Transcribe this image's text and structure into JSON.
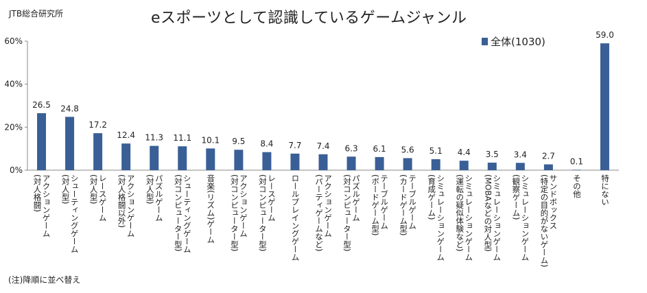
{
  "source": "JTB総合研究所",
  "title": "eスポーツとして認識しているゲームジャンル",
  "note": "(注)降順に並べ替え",
  "colors": {
    "bar": "#3a5f96",
    "axis": "#888888"
  },
  "chart_data": {
    "type": "bar",
    "title": "eスポーツとして認識しているゲームジャンル",
    "xlabel": "",
    "ylabel": "",
    "ylim": [
      0,
      60
    ],
    "yticks": [
      "0%",
      "20%",
      "40%",
      "60%"
    ],
    "ytick_values": [
      0,
      20,
      40,
      60
    ],
    "legend": "top-right",
    "series": [
      {
        "name": "全体(1030)",
        "values": [
          26.5,
          24.8,
          17.2,
          12.4,
          11.3,
          11.1,
          10.1,
          9.5,
          8.4,
          7.7,
          7.4,
          6.3,
          6.1,
          5.6,
          5.1,
          4.4,
          3.5,
          3.4,
          2.7,
          0.1,
          59.0
        ]
      }
    ],
    "value_labels": [
      "26.5",
      "24.8",
      "17.2",
      "12.4",
      "11.3",
      "11.1",
      "10.1",
      "9.5",
      "8.4",
      "7.7",
      "7.4",
      "6.3",
      "6.1",
      "5.6",
      "5.1",
      "4.4",
      "3.5",
      "3.4",
      "2.7",
      "0.1",
      "59.0"
    ],
    "categories": [
      "アクションゲーム\n(対人格闘)",
      "シューティングゲーム\n(対人型)",
      "レースゲーム\n(対人型)",
      "アクションゲーム\n(対人格闘以外)",
      "パズルゲーム\n(対人型)",
      "シューティングゲーム\n(対コンピューター型)",
      "音楽(リズム)ゲーム",
      "アクションゲーム\n(対コンピューター型)",
      "レースゲーム\n(対コンピューター型)",
      "ロールプレイングゲーム",
      "アクションゲーム\n(パーティゲームなど)",
      "パズルゲーム\n(対コンピューター型)",
      "テーブルゲーム\n(ボードゲーム型)",
      "テーブルゲーム\n(カードゲーム型)",
      "シミュレーションゲーム\n(育成ゲーム)",
      "シミュレーションゲーム\n(運転の疑似体験など)",
      "シミュレーションゲーム\n(MOBAなどの対人型)",
      "シミュレーションゲーム\n(観察ゲーム)",
      "サンドボックス\n(特定の目的がないゲーム)",
      "その他",
      "特にない"
    ]
  }
}
